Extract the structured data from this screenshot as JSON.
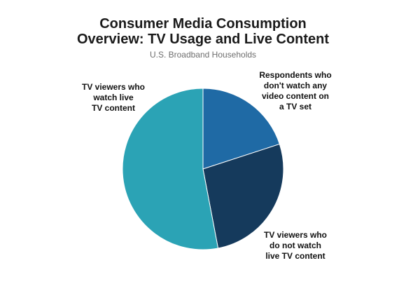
{
  "chart_data": {
    "type": "pie",
    "title_lines": [
      "Consumer Media Consumption",
      "Overview: TV Usage and Live Content"
    ],
    "subtitle": "U.S. Broadband Households",
    "slices": [
      {
        "label_lines": [
          "Respondents who",
          "don't watch any",
          "video content on",
          "a TV set"
        ],
        "value": 20,
        "color": "#1f6aa5"
      },
      {
        "label_lines": [
          "TV viewers who",
          "do not watch",
          "live TV content"
        ],
        "value": 27,
        "color": "#153a5c"
      },
      {
        "label_lines": [
          "TV viewers who",
          "watch live",
          "TV content"
        ],
        "value": 53,
        "color": "#2ba3b5"
      }
    ]
  }
}
